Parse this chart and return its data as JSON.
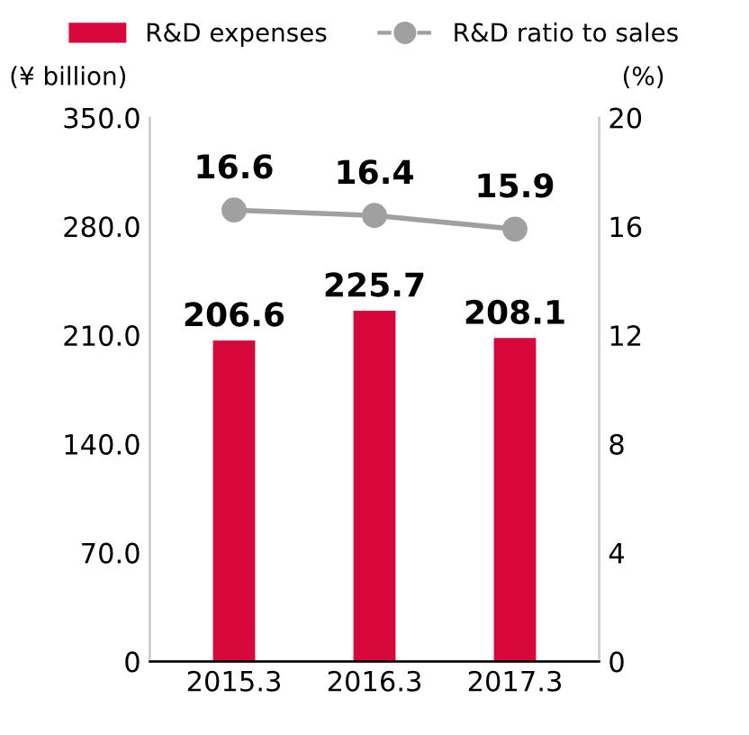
{
  "chart_data": {
    "type": "bar",
    "categories": [
      "2015.3",
      "2016.3",
      "2017.3"
    ],
    "ylabel": "(¥ billion)",
    "y2label": "(%)",
    "series": [
      {
        "name": "R&D expenses",
        "color": "#d7063b",
        "values": [
          206.6,
          225.7,
          208.1
        ]
      },
      {
        "name": "R&D ratio to sales",
        "type": "line",
        "axis": "y2",
        "color": "#a0a0a0",
        "marker": "circle",
        "values": [
          16.6,
          16.4,
          15.9
        ]
      }
    ],
    "ylim": [
      0,
      350
    ],
    "yticks": [
      {
        "value": 0,
        "label": "0"
      },
      {
        "value": 70,
        "label": "70.0"
      },
      {
        "value": 140,
        "label": "140.0"
      },
      {
        "value": 210,
        "label": "210.0"
      },
      {
        "value": 280,
        "label": "280.0"
      },
      {
        "value": 350,
        "label": "350.0"
      }
    ],
    "y2lim": [
      0,
      20
    ],
    "y2ticks": [
      0,
      4,
      8,
      12,
      16,
      20
    ],
    "data_labels": true,
    "legend": "top",
    "grid": false
  }
}
